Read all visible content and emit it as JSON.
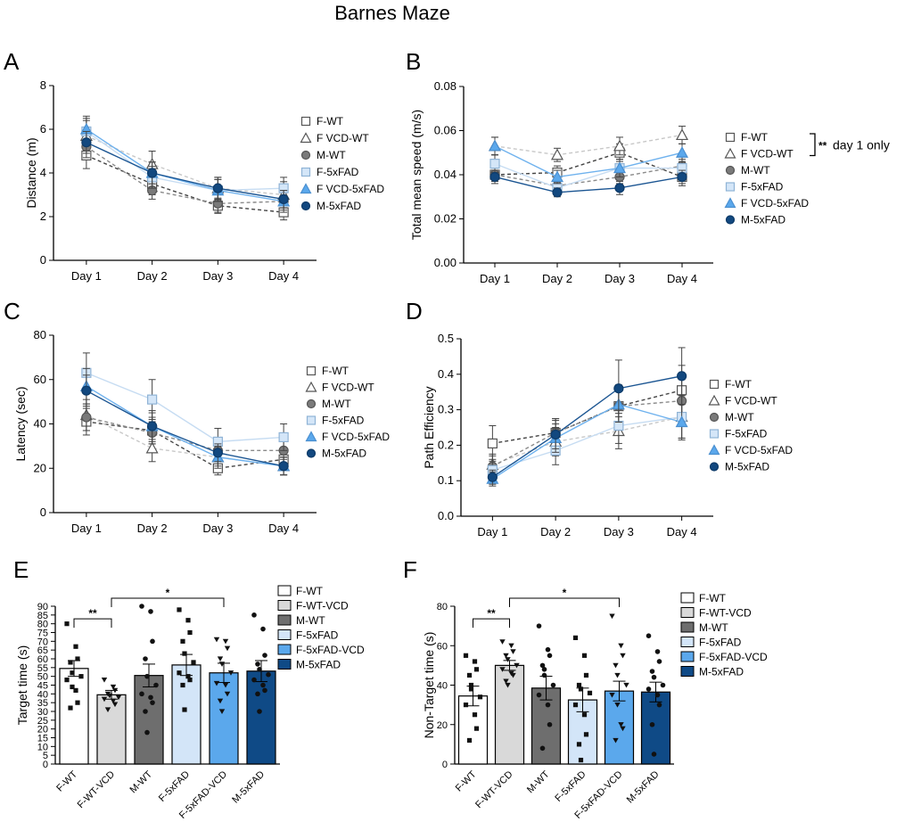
{
  "figure_title": "Barnes Maze",
  "series_styles": {
    "F-WT": {
      "marker": "square",
      "fill": "#ffffff",
      "stroke": "#555555",
      "line": "#444444",
      "dash": "4,3"
    },
    "F VCD-WT": {
      "marker": "triangle",
      "fill": "#ffffff",
      "stroke": "#555555",
      "line": "#c8c8c8",
      "dash": "4,3"
    },
    "M-WT": {
      "marker": "circle",
      "fill": "#7a7a7a",
      "stroke": "#555555",
      "line": "#8a8a8a",
      "dash": "4,3"
    },
    "F-5xFAD": {
      "marker": "square",
      "fill": "#d4e6f8",
      "stroke": "#8fb3d6",
      "line": "#c6dcf2",
      "dash": ""
    },
    "F VCD-5xFAD": {
      "marker": "triangle",
      "fill": "#5ba8ec",
      "stroke": "#4a8fd0",
      "line": "#6fb2ee",
      "dash": ""
    },
    "M-5xFAD": {
      "marker": "circle",
      "fill": "#12487f",
      "stroke": "#0d3a68",
      "line": "#1b5592",
      "dash": ""
    }
  },
  "chart_data": [
    {
      "id": "A",
      "letter": "A",
      "type": "line",
      "categories": [
        "Day 1",
        "Day 2",
        "Day 3",
        "Day 4"
      ],
      "ylabel": "Distance (m)",
      "xlabel": "",
      "ylim": [
        0,
        8
      ],
      "yticks": [
        "0",
        "2",
        "4",
        "6",
        "8"
      ],
      "legend": [
        "F-WT",
        "F VCD-WT",
        "M-WT",
        "F-5xFAD",
        "F VCD-5xFAD",
        "M-5xFAD"
      ],
      "series": [
        {
          "name": "F-WT",
          "values": [
            4.8,
            3.5,
            2.5,
            2.2
          ],
          "err": [
            0.6,
            0.5,
            0.35,
            0.35
          ]
        },
        {
          "name": "F VCD-WT",
          "values": [
            5.7,
            4.4,
            3.3,
            3.0
          ],
          "err": [
            0.7,
            0.6,
            0.5,
            0.6
          ]
        },
        {
          "name": "M-WT",
          "values": [
            5.2,
            3.2,
            2.6,
            2.7
          ],
          "err": [
            0.5,
            0.4,
            0.4,
            0.4
          ]
        },
        {
          "name": "F-5xFAD",
          "values": [
            5.9,
            3.8,
            3.2,
            3.3
          ],
          "err": [
            0.6,
            0.5,
            0.5,
            0.5
          ]
        },
        {
          "name": "F VCD-5xFAD",
          "values": [
            6.0,
            4.0,
            3.2,
            2.7
          ],
          "err": [
            0.6,
            0.5,
            0.5,
            0.5
          ]
        },
        {
          "name": "M-5xFAD",
          "values": [
            5.4,
            4.0,
            3.3,
            2.8
          ],
          "err": [
            0.5,
            0.5,
            0.5,
            0.4
          ]
        }
      ]
    },
    {
      "id": "B",
      "letter": "B",
      "type": "line",
      "categories": [
        "Day 1",
        "Day 2",
        "Day 3",
        "Day 4"
      ],
      "ylabel": "Total mean speed (m/s)",
      "xlabel": "",
      "ylim": [
        0,
        0.08
      ],
      "yticks": [
        "0.00",
        "0.02",
        "0.04",
        "0.06",
        "0.08"
      ],
      "legend": [
        "F-WT",
        "F VCD-WT",
        "M-WT",
        "F-5xFAD",
        "F VCD-5xFAD",
        "M-5xFAD"
      ],
      "annotation": "day 1 only",
      "annotation_stars": "**",
      "series": [
        {
          "name": "F-WT",
          "values": [
            0.04,
            0.041,
            0.05,
            0.039
          ],
          "err": [
            0.003,
            0.003,
            0.004,
            0.004
          ]
        },
        {
          "name": "F VCD-WT",
          "values": [
            0.053,
            0.049,
            0.053,
            0.058
          ],
          "err": [
            0.004,
            0.003,
            0.004,
            0.004
          ]
        },
        {
          "name": "M-WT",
          "values": [
            0.04,
            0.035,
            0.039,
            0.044
          ],
          "err": [
            0.003,
            0.003,
            0.003,
            0.004
          ]
        },
        {
          "name": "F-5xFAD",
          "values": [
            0.045,
            0.034,
            0.043,
            0.043
          ],
          "err": [
            0.004,
            0.003,
            0.004,
            0.004
          ]
        },
        {
          "name": "F VCD-5xFAD",
          "values": [
            0.053,
            0.039,
            0.043,
            0.05
          ],
          "err": [
            0.004,
            0.003,
            0.004,
            0.004
          ]
        },
        {
          "name": "M-5xFAD",
          "values": [
            0.039,
            0.032,
            0.034,
            0.039
          ],
          "err": [
            0.003,
            0.002,
            0.003,
            0.003
          ]
        }
      ]
    },
    {
      "id": "C",
      "letter": "C",
      "type": "line",
      "categories": [
        "Day 1",
        "Day 2",
        "Day 3",
        "Day 4"
      ],
      "ylabel": "Latency (sec)",
      "xlabel": "",
      "ylim": [
        0,
        80
      ],
      "yticks": [
        "0",
        "20",
        "40",
        "60",
        "80"
      ],
      "legend": [
        "F-WT",
        "F VCD-WT",
        "M-WT",
        "F-5xFAD",
        "F VCD-5xFAD",
        "M-5xFAD"
      ],
      "series": [
        {
          "name": "F-WT",
          "values": [
            41,
            37,
            20,
            24
          ],
          "err": [
            6,
            6,
            3,
            4
          ]
        },
        {
          "name": "F VCD-WT",
          "values": [
            44,
            29,
            25,
            21
          ],
          "err": [
            7,
            6,
            4,
            4
          ]
        },
        {
          "name": "M-WT",
          "values": [
            43,
            36,
            28,
            28
          ],
          "err": [
            6,
            5,
            4,
            4
          ]
        },
        {
          "name": "F-5xFAD",
          "values": [
            63,
            51,
            32,
            34
          ],
          "err": [
            9,
            9,
            6,
            6
          ]
        },
        {
          "name": "F VCD-5xFAD",
          "values": [
            57,
            39,
            25,
            21
          ],
          "err": [
            8,
            7,
            5,
            4
          ]
        },
        {
          "name": "M-5xFAD",
          "values": [
            55,
            39,
            27,
            21
          ],
          "err": [
            7,
            6,
            4,
            4
          ]
        }
      ]
    },
    {
      "id": "D",
      "letter": "D",
      "type": "line",
      "categories": [
        "Day 1",
        "Day 2",
        "Day 3",
        "Day 4"
      ],
      "ylabel": "Path Efficiency",
      "xlabel": "",
      "ylim": [
        0,
        0.5
      ],
      "yticks": [
        "0.0",
        "0.1",
        "0.2",
        "0.3",
        "0.4",
        "0.5"
      ],
      "legend": [
        "F-WT",
        "F VCD-WT",
        "M-WT",
        "F-5xFAD",
        "F VCD-5xFAD",
        "M-5xFAD"
      ],
      "series": [
        {
          "name": "F-WT",
          "values": [
            0.205,
            0.235,
            0.31,
            0.355
          ],
          "err": [
            0.05,
            0.04,
            0.06,
            0.07
          ]
        },
        {
          "name": "F VCD-WT",
          "values": [
            0.145,
            0.21,
            0.24,
            0.28
          ],
          "err": [
            0.03,
            0.04,
            0.05,
            0.06
          ]
        },
        {
          "name": "M-WT",
          "values": [
            0.14,
            0.235,
            0.31,
            0.325
          ],
          "err": [
            0.03,
            0.04,
            0.05,
            0.06
          ]
        },
        {
          "name": "F-5xFAD",
          "values": [
            0.13,
            0.185,
            0.255,
            0.28
          ],
          "err": [
            0.03,
            0.04,
            0.05,
            0.06
          ]
        },
        {
          "name": "F VCD-5xFAD",
          "values": [
            0.105,
            0.22,
            0.315,
            0.265
          ],
          "err": [
            0.02,
            0.04,
            0.05,
            0.05
          ]
        },
        {
          "name": "M-5xFAD",
          "values": [
            0.11,
            0.23,
            0.36,
            0.395
          ],
          "err": [
            0.02,
            0.04,
            0.08,
            0.08
          ]
        }
      ]
    },
    {
      "id": "E",
      "letter": "E",
      "type": "bar",
      "categories": [
        "F-WT",
        "F-WT-VCD",
        "M-WT",
        "F-5xFAD",
        "F-5xFAD-VCD",
        "M-5xFAD"
      ],
      "ylabel": "Target time (s)",
      "xlabel": "",
      "ylim": [
        0,
        90
      ],
      "yticks": [
        "0",
        "5",
        "10",
        "15",
        "20",
        "25",
        "30",
        "35",
        "40",
        "45",
        "50",
        "55",
        "60",
        "65",
        "70",
        "75",
        "80",
        "85",
        "90"
      ],
      "legend": [
        "F-WT",
        "F-WT-VCD",
        "M-WT",
        "F-5xFAD",
        "F-5xFAD-VCD",
        "M-5xFAD"
      ],
      "colors": [
        "#ffffff",
        "#d9d9d9",
        "#6e6e6e",
        "#d3e5f8",
        "#5ba8ec",
        "#0f4a86"
      ],
      "values": [
        54.5,
        39.5,
        50.5,
        56.5,
        52,
        53
      ],
      "err": [
        4.5,
        2.5,
        6.5,
        6,
        5.5,
        6
      ],
      "points": [
        [
          80,
          67,
          60,
          58,
          52,
          50,
          48,
          42,
          35,
          32,
          44
        ],
        [
          48,
          44,
          42,
          40,
          39,
          38,
          37,
          36,
          34,
          31
        ],
        [
          90,
          87,
          70,
          60,
          50,
          45,
          40,
          38,
          35,
          30,
          18
        ],
        [
          88,
          82,
          75,
          70,
          63,
          58,
          52,
          50,
          48,
          45,
          31
        ],
        [
          71,
          70,
          66,
          60,
          57,
          52,
          46,
          45,
          40,
          36,
          30
        ],
        [
          85,
          77,
          62,
          57,
          54,
          51,
          48,
          45,
          42,
          40,
          30
        ]
      ],
      "sig": [
        {
          "from": 0,
          "to": 1,
          "label": "**"
        },
        {
          "from": 1,
          "to": 4,
          "label": "*"
        }
      ]
    },
    {
      "id": "F",
      "letter": "F",
      "type": "bar",
      "categories": [
        "F-WT",
        "F-WT-VCD",
        "M-WT",
        "F-5xFAD",
        "F-5xFAD-VCD",
        "M-5xFAD"
      ],
      "ylabel": "Non-Target time (s)",
      "xlabel": "",
      "ylim": [
        0,
        80
      ],
      "yticks": [
        "0",
        "20",
        "40",
        "60",
        "80"
      ],
      "legend": [
        "F-WT",
        "F-WT-VCD",
        "M-WT",
        "F-5xFAD",
        "F-5xFAD-VCD",
        "M-5xFAD"
      ],
      "colors": [
        "#ffffff",
        "#d9d9d9",
        "#6e6e6e",
        "#d3e5f8",
        "#5ba8ec",
        "#0f4a86"
      ],
      "values": [
        34.5,
        50,
        38.5,
        32.5,
        37,
        36.5
      ],
      "err": [
        5,
        2.5,
        6,
        6,
        5,
        5
      ],
      "points": [
        [
          55,
          52,
          48,
          45,
          40,
          34,
          30,
          25,
          18,
          12,
          38
        ],
        [
          62,
          60,
          57,
          55,
          53,
          50,
          48,
          46,
          45,
          42,
          40
        ],
        [
          70,
          58,
          55,
          50,
          45,
          40,
          35,
          30,
          20,
          8,
          48
        ],
        [
          64,
          55,
          45,
          40,
          38,
          36,
          30,
          25,
          15,
          10,
          2
        ],
        [
          75,
          60,
          55,
          50,
          45,
          40,
          35,
          20,
          18,
          12,
          30
        ],
        [
          65,
          57,
          52,
          47,
          44,
          40,
          38,
          35,
          30,
          20,
          5
        ]
      ],
      "sig": [
        {
          "from": 0,
          "to": 1,
          "label": "**"
        },
        {
          "from": 1,
          "to": 4,
          "label": "*"
        }
      ]
    }
  ]
}
